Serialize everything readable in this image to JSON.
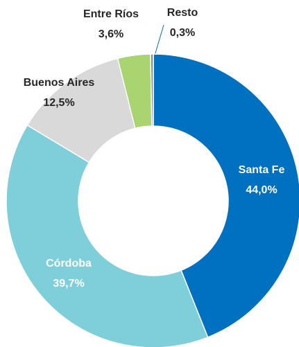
{
  "chart_data": {
    "type": "donut",
    "categories": [
      "Santa Fe",
      "Córdoba",
      "Buenos Aires",
      "Entre Ríos",
      "Resto"
    ],
    "values": [
      44.0,
      39.7,
      12.5,
      3.6,
      0.3
    ],
    "value_labels": [
      "44,0%",
      "39,7%",
      "12,5%",
      "3,6%",
      "0,3%"
    ],
    "colors": [
      "#0070c0",
      "#7fcfdb",
      "#d9d9d9",
      "#a9d46f",
      "#8c8c8c"
    ]
  }
}
